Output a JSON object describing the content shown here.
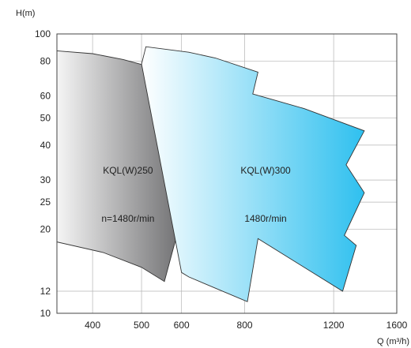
{
  "chart_data": {
    "type": "area",
    "title": "",
    "xlabel": "Q (m³/h)",
    "ylabel": "H(m)",
    "x_scale": "log",
    "y_scale": "log",
    "xlim": [
      340,
      1600
    ],
    "ylim": [
      10,
      100
    ],
    "x_ticks": [
      {
        "value": 400,
        "label": "400"
      },
      {
        "value": 500,
        "label": "500"
      },
      {
        "value": 600,
        "label": "600"
      },
      {
        "value": 800,
        "label": "800"
      },
      {
        "value": 1200,
        "label": "1200"
      },
      {
        "value": 1600,
        "label": "1600"
      }
    ],
    "y_ticks": [
      {
        "value": 10,
        "label": "10"
      },
      {
        "value": 12,
        "label": "12"
      },
      {
        "value": 20,
        "label": "20"
      },
      {
        "value": 25,
        "label": "25"
      },
      {
        "value": 30,
        "label": "30"
      },
      {
        "value": 40,
        "label": "40"
      },
      {
        "value": 50,
        "label": "50"
      },
      {
        "value": 60,
        "label": "60"
      },
      {
        "value": 80,
        "label": "80"
      },
      {
        "value": 100,
        "label": "100"
      }
    ],
    "grid": true,
    "series": [
      {
        "name": "KQL(W)250",
        "gradient": [
          "#f5f5f5",
          "#6f6f71"
        ],
        "polygon": [
          [
            340,
            87
          ],
          [
            400,
            85
          ],
          [
            460,
            81
          ],
          [
            510,
            77
          ],
          [
            600,
            76
          ],
          [
            555,
            50
          ],
          [
            600,
            44
          ],
          [
            568,
            35
          ],
          [
            600,
            33
          ],
          [
            568,
            25
          ],
          [
            600,
            22
          ],
          [
            555,
            13
          ],
          [
            500,
            14.6
          ],
          [
            420,
            16.5
          ],
          [
            340,
            18
          ]
        ],
        "labels": [
          {
            "text": "KQL(W)250",
            "x": 470,
            "y": 32.5
          },
          {
            "text": "n=1480r/min",
            "x": 470,
            "y": 21.8
          }
        ]
      },
      {
        "name": "KQL(W)300",
        "gradient": [
          "#ffffff",
          "#2fc0ef"
        ],
        "polygon": [
          [
            500,
            78
          ],
          [
            510,
            90
          ],
          [
            620,
            86
          ],
          [
            700,
            82
          ],
          [
            850,
            73
          ],
          [
            830,
            61
          ],
          [
            1050,
            54
          ],
          [
            1380,
            45
          ],
          [
            1270,
            34
          ],
          [
            1380,
            27
          ],
          [
            1260,
            19
          ],
          [
            1330,
            17.5
          ],
          [
            1250,
            12
          ],
          [
            850,
            18.5
          ],
          [
            810,
            11
          ],
          [
            700,
            12.3
          ],
          [
            620,
            13.5
          ],
          [
            600,
            14
          ]
        ],
        "labels": [
          {
            "text": "KQL(W)300",
            "x": 880,
            "y": 32.5
          },
          {
            "text": "1480r/min",
            "x": 880,
            "y": 21.8
          }
        ]
      }
    ]
  }
}
